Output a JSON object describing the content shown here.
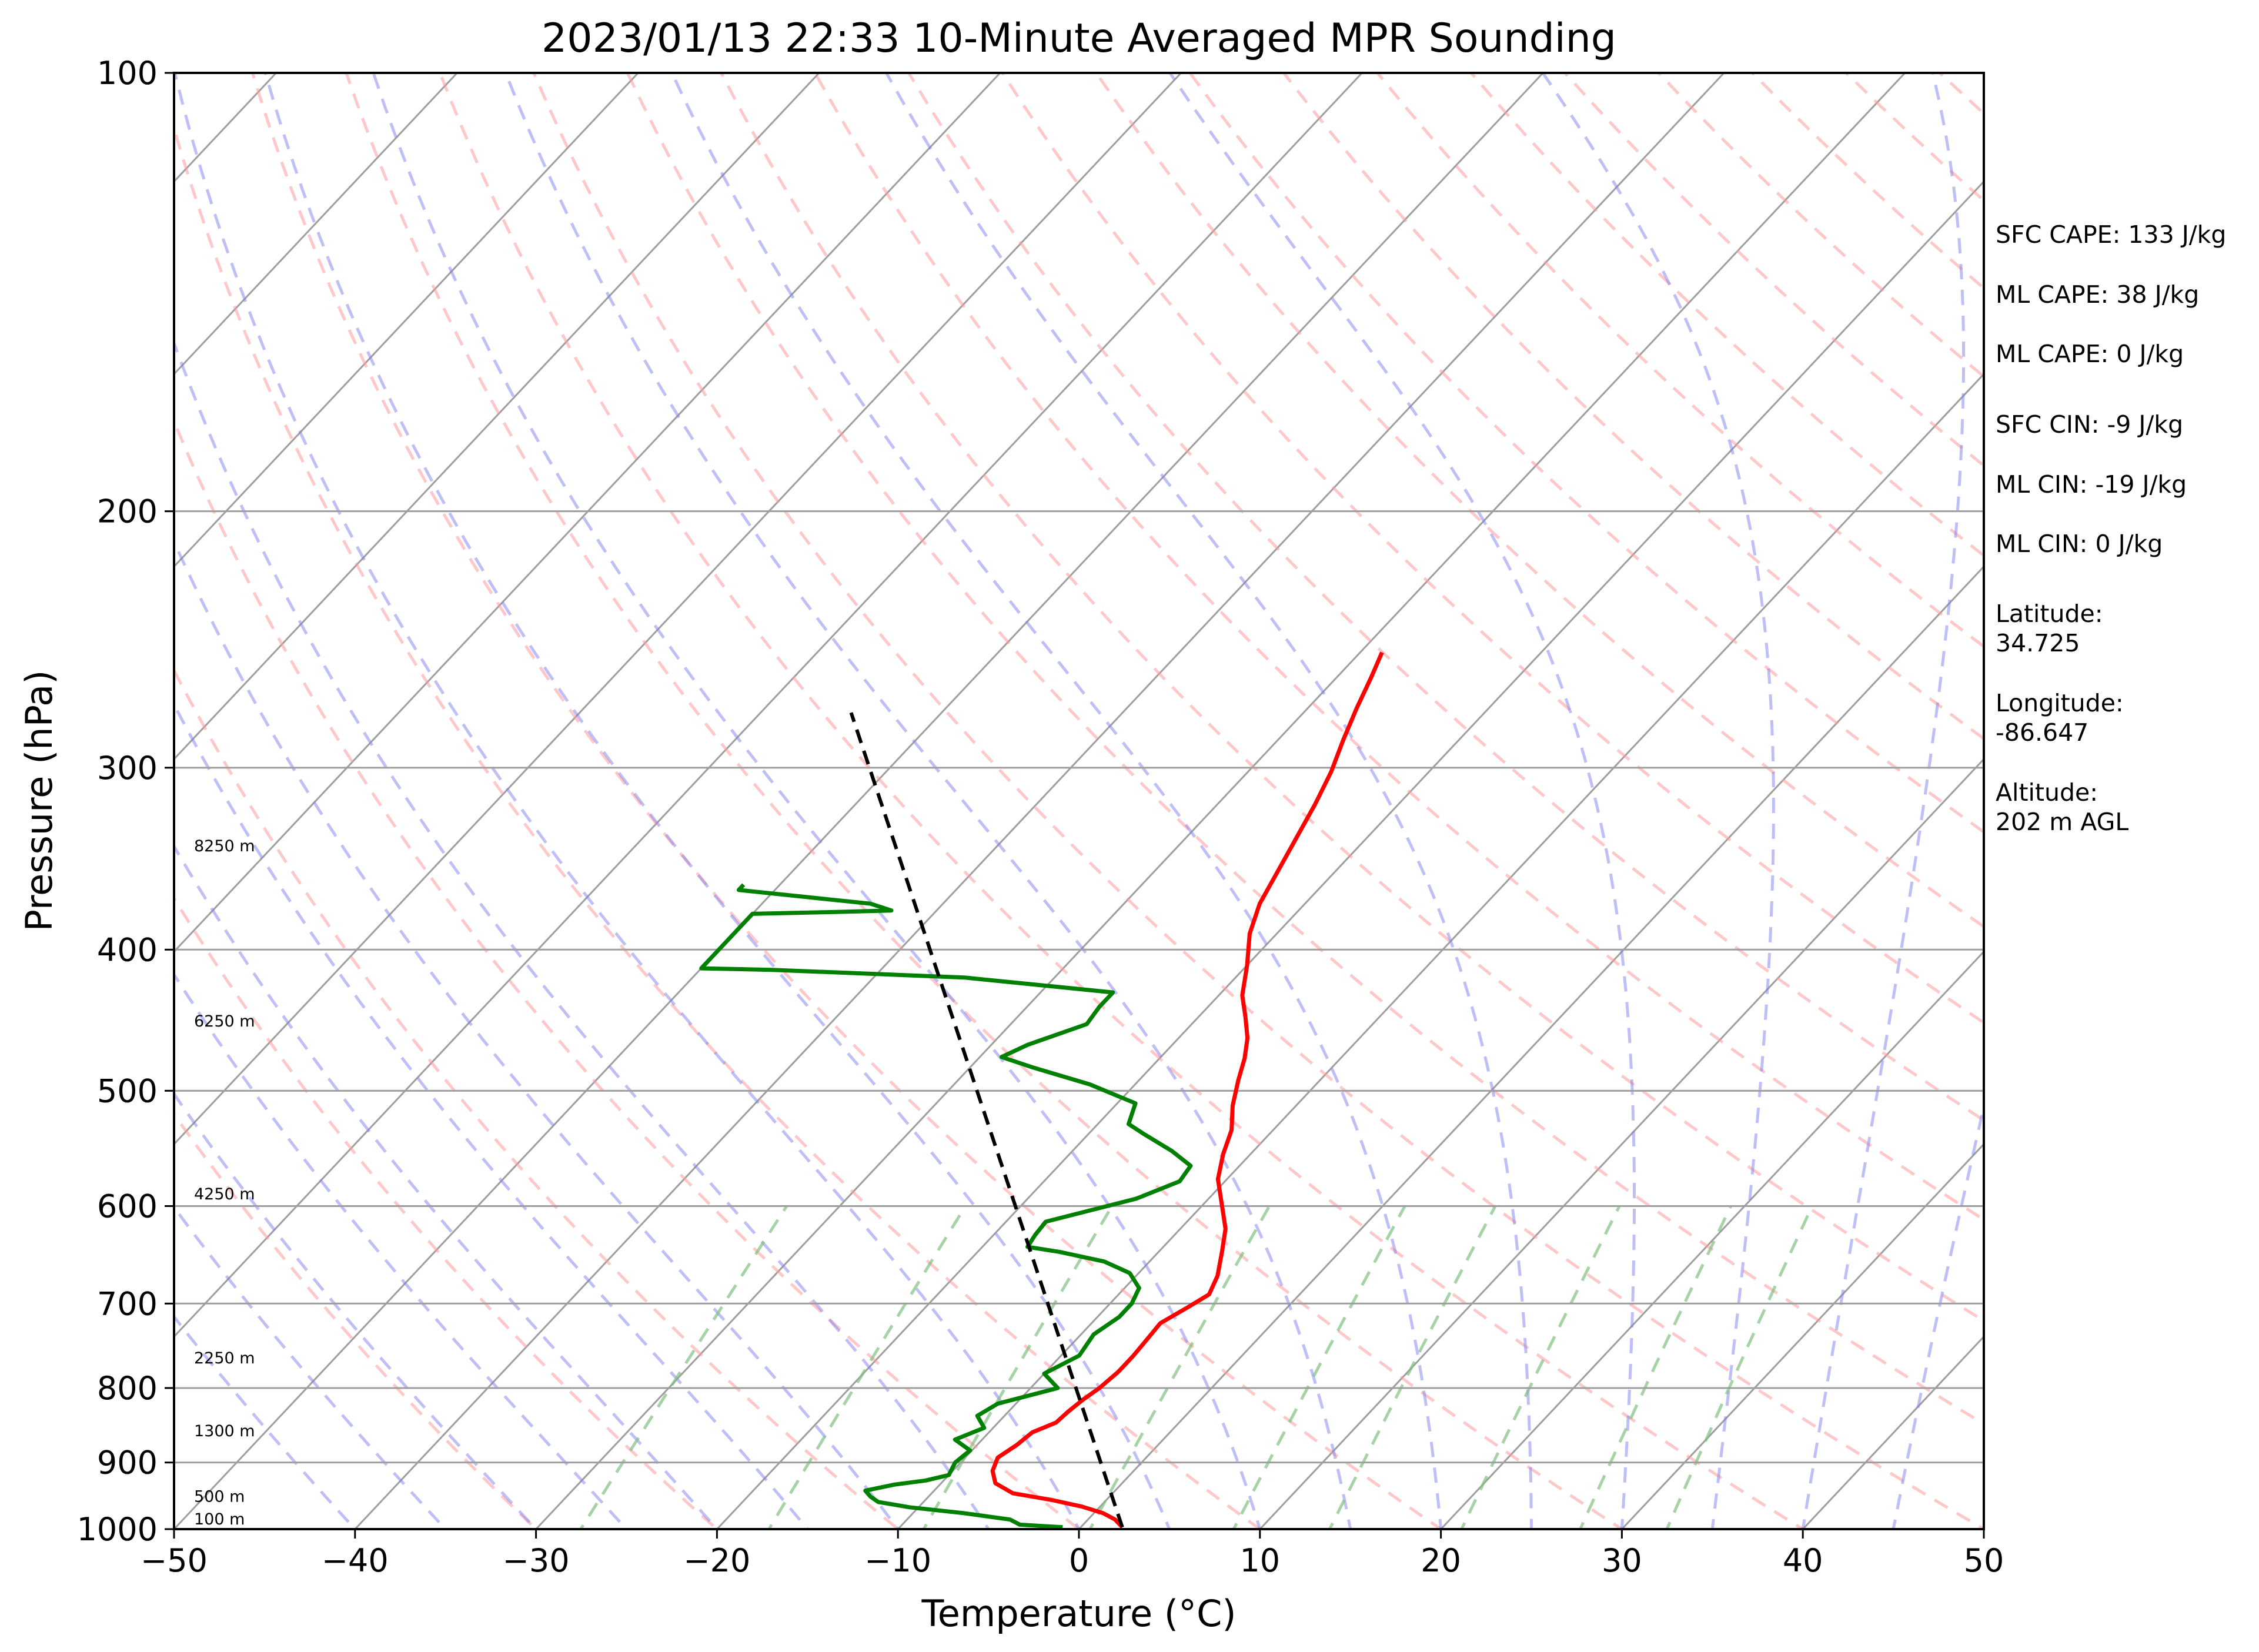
{
  "chart_data": {
    "type": "line",
    "subtype": "skew-T log-p sounding",
    "title": "2023/01/13 22:33 10-Minute Averaged MPR Sounding",
    "xlabel": "Temperature (°C)",
    "ylabel": "Pressure (hPa)",
    "xlim": [
      -50,
      50
    ],
    "ylim": [
      1000,
      100
    ],
    "y_scale": "log",
    "x_ticks": [
      -50,
      -40,
      -30,
      -20,
      -10,
      0,
      10,
      20,
      30,
      40,
      50
    ],
    "x_tick_labels": [
      "−50",
      "−40",
      "−30",
      "−20",
      "−10",
      "0",
      "10",
      "20",
      "30",
      "40",
      "50"
    ],
    "y_ticks": [
      1000,
      900,
      800,
      700,
      600,
      500,
      400,
      300,
      200,
      100
    ],
    "y_tick_labels": [
      "1000",
      "900",
      "800",
      "700",
      "600",
      "500",
      "400",
      "300",
      "200",
      "100"
    ],
    "grid": true,
    "colors": {
      "temperature": "#ff0000",
      "dewpoint": "#008000",
      "parcel": "#000000",
      "isotherm": "#9e9e9e",
      "dry_adiabat": "#ff9999",
      "moist_adiabat": "#8080f0",
      "mixing_ratio": "#80c080"
    },
    "series": [
      {
        "key": "temperature",
        "points": [
          [
            2.3,
            997
          ],
          [
            1.5,
            985
          ],
          [
            0.5,
            975
          ],
          [
            -1,
            965
          ],
          [
            -3,
            955
          ],
          [
            -5.5,
            945
          ],
          [
            -7,
            930
          ],
          [
            -7.8,
            912
          ],
          [
            -8.2,
            893
          ],
          [
            -7.8,
            875
          ],
          [
            -7.6,
            858
          ],
          [
            -6.8,
            845
          ],
          [
            -6.7,
            830
          ],
          [
            -6.5,
            815
          ],
          [
            -6.2,
            800
          ],
          [
            -6.0,
            780
          ],
          [
            -6.0,
            760
          ],
          [
            -6.1,
            740
          ],
          [
            -6.2,
            722
          ],
          [
            -5.5,
            704
          ],
          [
            -5.0,
            690
          ],
          [
            -5.5,
            670
          ],
          [
            -6.5,
            645
          ],
          [
            -7.5,
            622
          ],
          [
            -9,
            598
          ],
          [
            -10.5,
            575
          ],
          [
            -11.5,
            553
          ],
          [
            -12.3,
            532
          ],
          [
            -13.5,
            512
          ],
          [
            -14.5,
            492
          ],
          [
            -15.3,
            475
          ],
          [
            -16.2,
            460
          ],
          [
            -17.4,
            445
          ],
          [
            -18.7,
            430
          ],
          [
            -20,
            410
          ],
          [
            -21.5,
            390
          ],
          [
            -22.5,
            372
          ],
          [
            -23.2,
            353
          ],
          [
            -23.9,
            335
          ],
          [
            -24.6,
            318
          ],
          [
            -25.4,
            302
          ],
          [
            -26.4,
            287
          ],
          [
            -27.3,
            273
          ],
          [
            -28.1,
            260
          ],
          [
            -28.8,
            250
          ]
        ]
      },
      {
        "key": "dewpoint",
        "points": [
          [
            -1,
            997
          ],
          [
            -3.5,
            993
          ],
          [
            -4.3,
            985
          ],
          [
            -7.2,
            975
          ],
          [
            -10.5,
            966
          ],
          [
            -12.5,
            958
          ],
          [
            -13.2,
            950
          ],
          [
            -13.8,
            941
          ],
          [
            -12.5,
            932
          ],
          [
            -11,
            926
          ],
          [
            -10,
            918
          ],
          [
            -10.3,
            900
          ],
          [
            -10.1,
            883
          ],
          [
            -11.5,
            868
          ],
          [
            -10.5,
            852
          ],
          [
            -11.5,
            836
          ],
          [
            -11,
            820
          ],
          [
            -8.5,
            800
          ],
          [
            -10,
            782
          ],
          [
            -9,
            760
          ],
          [
            -9.3,
            735
          ],
          [
            -8.8,
            715
          ],
          [
            -8.8,
            700
          ],
          [
            -9.2,
            683
          ],
          [
            -10.5,
            667
          ],
          [
            -12.5,
            655
          ],
          [
            -15.5,
            645
          ],
          [
            -17.5,
            640
          ],
          [
            -17.7,
            628
          ],
          [
            -17.8,
            615
          ],
          [
            -14,
            593
          ],
          [
            -12.5,
            577
          ],
          [
            -12.7,
            563
          ],
          [
            -14.5,
            550
          ],
          [
            -17,
            535
          ],
          [
            -18.3,
            527
          ],
          [
            -19,
            510
          ],
          [
            -22.5,
            495
          ],
          [
            -26.5,
            482
          ],
          [
            -28.8,
            474
          ],
          [
            -28,
            465
          ],
          [
            -25.8,
            450
          ],
          [
            -26,
            438
          ],
          [
            -26,
            428
          ],
          [
            -35,
            418
          ],
          [
            -46,
            413
          ],
          [
            -50,
            412
          ],
          [
            -50,
            378
          ],
          [
            -46,
            377
          ],
          [
            -42.5,
            376
          ],
          [
            -44,
            372
          ],
          [
            -52,
            364
          ],
          [
            -52,
            361
          ]
        ]
      },
      {
        "key": "parcel",
        "points": [
          [
            2.3,
            997
          ],
          [
            -55,
            275
          ]
        ]
      }
    ],
    "height_labels": [
      {
        "label": "8250 m",
        "p": 345
      },
      {
        "label": "6250 m",
        "p": 455
      },
      {
        "label": "4250 m",
        "p": 598
      },
      {
        "label": "2250 m",
        "p": 775
      },
      {
        "label": "1300 m",
        "p": 870
      },
      {
        "label": "500 m",
        "p": 965
      },
      {
        "label": "100 m",
        "p": 1000
      }
    ]
  },
  "annotations": [
    "SFC CAPE: 133 J/kg",
    "ML CAPE: 38 J/kg",
    "ML CAPE: 0 J/kg",
    "SFC CIN: -9 J/kg",
    "ML CIN: -19 J/kg",
    "ML CIN: 0 J/kg",
    "Latitude:",
    "34.725",
    "Longitude:",
    "-86.647",
    "Altitude:",
    "202 m AGL"
  ]
}
